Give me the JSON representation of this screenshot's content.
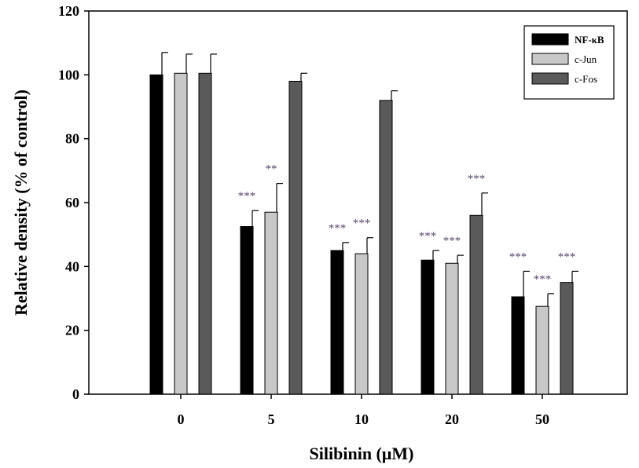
{
  "chart_data": {
    "type": "bar",
    "title": "",
    "xlabel": "Silibinin (μM)",
    "ylabel": "Relative density (% of control)",
    "categories": [
      "0",
      "5",
      "10",
      "20",
      "50"
    ],
    "ylim": [
      0,
      120
    ],
    "yticks": [
      "0",
      "20",
      "40",
      "60",
      "80",
      "100",
      "120"
    ],
    "grid": false,
    "legend_position": "top-right",
    "series": [
      {
        "name": "NF-κB",
        "color": "#000000",
        "values": [
          100,
          52.5,
          45,
          42,
          30.5
        ],
        "errors": [
          7,
          5,
          2.5,
          3,
          8
        ],
        "significance": [
          "",
          "***",
          "***",
          "***",
          "***"
        ]
      },
      {
        "name": "c-Jun",
        "color": "#c8c8c8",
        "values": [
          100.5,
          57,
          44,
          41,
          27.5
        ],
        "errors": [
          6,
          9,
          5,
          2.5,
          4
        ],
        "significance": [
          "",
          "**",
          "***",
          "***",
          "***"
        ]
      },
      {
        "name": "c-Fos",
        "color": "#5a5a5a",
        "values": [
          100.5,
          98,
          92,
          56,
          35
        ],
        "errors": [
          6,
          2.5,
          3,
          7,
          3.5
        ],
        "significance": [
          "",
          "",
          "",
          "***",
          "***"
        ]
      }
    ]
  }
}
